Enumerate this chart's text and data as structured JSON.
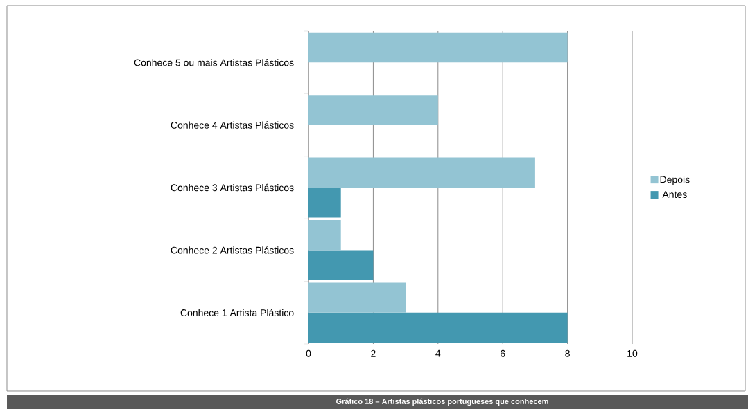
{
  "chart_data": {
    "type": "bar",
    "orientation": "horizontal",
    "categories": [
      "Conhece 5 ou mais Artistas Plásticos",
      "Conhece 4 Artistas Plásticos",
      "Conhece 3 Artistas Plásticos",
      "Conhece 2 Artistas Plásticos",
      "Conhece 1 Artista Plástico"
    ],
    "series": [
      {
        "name": "Antes",
        "color": "#4398b0",
        "values": [
          0,
          0,
          1,
          2,
          8
        ]
      },
      {
        "name": "Depois",
        "color": "#93c4d3",
        "values": [
          8,
          4,
          7,
          1,
          3
        ]
      }
    ],
    "xlim": [
      0,
      10
    ],
    "xticks": [
      0,
      2,
      4,
      6,
      8,
      10
    ],
    "grid": "x",
    "legend": "right",
    "annotations": [
      "Gráfico 18 – Artistas plásticos portugueses que conhecem"
    ]
  }
}
